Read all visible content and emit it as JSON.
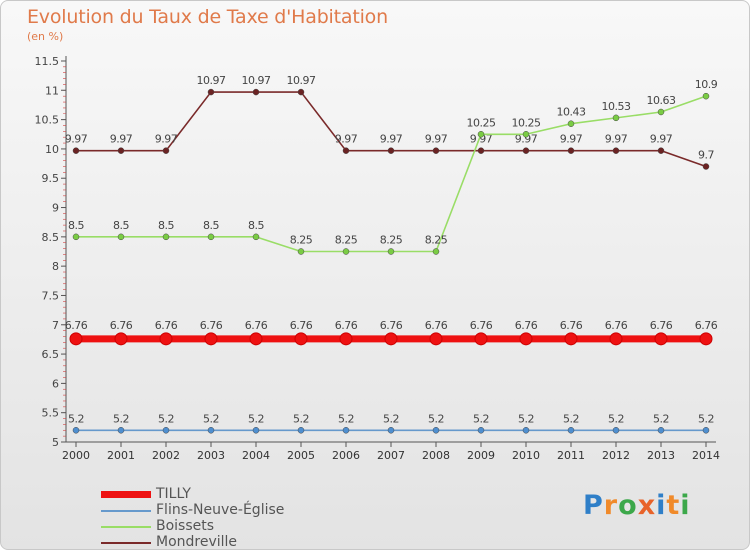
{
  "header": {
    "title": "Evolution du Taux de Taxe d'Habitation",
    "unit": "(en %)"
  },
  "logo": {
    "text": "Proxiti",
    "letters": [
      "P",
      "r",
      "o",
      "x",
      "i",
      "t",
      "i"
    ],
    "colors": [
      "#2f7fc8",
      "#f08a2a",
      "#3ca84a",
      "#e8632a",
      "#2f7fc8",
      "#f08a2a",
      "#3ca84a"
    ]
  },
  "chart_data": {
    "type": "line",
    "title": "Evolution du Taux de Taxe d'Habitation",
    "ylabel": "(en %)",
    "xlabel": "",
    "ylim": [
      5,
      11.5
    ],
    "yticks": [
      "5",
      "5.5",
      "6",
      "6.5",
      "7",
      "7.5",
      "8",
      "8.5",
      "9",
      "9.5",
      "10",
      "10.5",
      "11",
      "11.5"
    ],
    "categories": [
      "2000",
      "2001",
      "2002",
      "2003",
      "2004",
      "2005",
      "2006",
      "2007",
      "2008",
      "2009",
      "2010",
      "2011",
      "2012",
      "2013",
      "2014"
    ],
    "series": [
      {
        "name": "Mondreville",
        "color": "#7a2a2a",
        "marker_fill": "#6b2323",
        "thick": false,
        "values": [
          9.97,
          9.97,
          9.97,
          10.97,
          10.97,
          10.97,
          9.97,
          9.97,
          9.97,
          9.97,
          9.97,
          9.97,
          9.97,
          9.97,
          9.7
        ],
        "labels": [
          "9.97",
          "9.97",
          "9.97",
          "10.97",
          "10.97",
          "10.97",
          "9.97",
          "9.97",
          "9.97",
          "9.97",
          "9.97",
          "9.97",
          "9.97",
          "9.97",
          "9.7"
        ]
      },
      {
        "name": "Boissets",
        "color": "#99dd66",
        "marker_fill": "#7acc44",
        "thick": false,
        "values": [
          8.5,
          8.5,
          8.5,
          8.5,
          8.5,
          8.25,
          8.25,
          8.25,
          8.25,
          10.25,
          10.25,
          10.43,
          10.53,
          10.63,
          10.9
        ],
        "labels": [
          "8.5",
          "8.5",
          "8.5",
          "8.5",
          "8.5",
          "8.25",
          "8.25",
          "8.25",
          "8.25",
          "10.25",
          "10.25",
          "10.43",
          "10.53",
          "10.63",
          "10.9"
        ]
      },
      {
        "name": "TILLY",
        "color": "#ee1111",
        "marker_fill": "#ee1111",
        "thick": true,
        "values": [
          6.76,
          6.76,
          6.76,
          6.76,
          6.76,
          6.76,
          6.76,
          6.76,
          6.76,
          6.76,
          6.76,
          6.76,
          6.76,
          6.76,
          6.76
        ],
        "labels": [
          "6.76",
          "6.76",
          "6.76",
          "6.76",
          "6.76",
          "6.76",
          "6.76",
          "6.76",
          "6.76",
          "6.76",
          "6.76",
          "6.76",
          "6.76",
          "6.76",
          "6.76"
        ]
      },
      {
        "name": "Flins-Neuve-Église",
        "color": "#6699cc",
        "marker_fill": "#4f8fd0",
        "thick": false,
        "values": [
          5.2,
          5.2,
          5.2,
          5.2,
          5.2,
          5.2,
          5.2,
          5.2,
          5.2,
          5.2,
          5.2,
          5.2,
          5.2,
          5.2,
          5.2
        ],
        "labels": [
          "5.2",
          "5.2",
          "5.2",
          "5.2",
          "5.2",
          "5.2",
          "5.2",
          "5.2",
          "5.2",
          "5.2",
          "5.2",
          "5.2",
          "5.2",
          "5.2",
          "5.2"
        ]
      }
    ],
    "legend": [
      {
        "name": "TILLY",
        "color": "#ee1111",
        "thick": true
      },
      {
        "name": "Flins-Neuve-Église",
        "color": "#6699cc",
        "thick": false
      },
      {
        "name": "Boissets",
        "color": "#99dd66",
        "thick": false
      },
      {
        "name": "Mondreville",
        "color": "#7a2a2a",
        "thick": false
      }
    ],
    "legend_position": "bottom-left",
    "grid": false
  }
}
